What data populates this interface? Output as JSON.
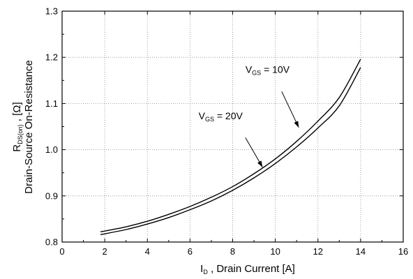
{
  "chart_data": {
    "type": "line",
    "title": "",
    "xlabel": {
      "main": "I",
      "sub": "D",
      "rest": " , Drain Current  [A]"
    },
    "ylabel": {
      "line1_main": "R",
      "line1_sub": "DS(on)",
      "line1_rest": " , [Ω]",
      "line2": "Drain-Source On-Resistance"
    },
    "xlim": [
      0,
      16
    ],
    "ylim": [
      0.8,
      1.3
    ],
    "xticks": [
      "0",
      "2",
      "4",
      "6",
      "8",
      "10",
      "12",
      "14",
      "16"
    ],
    "yticks": [
      "0.8",
      "0.9",
      "1.0",
      "1.1",
      "1.2",
      "1.3"
    ],
    "grid": true,
    "series": [
      {
        "name": "VGS = 10V",
        "x": [
          1.8,
          3,
          4,
          5,
          6,
          7,
          8,
          9,
          10,
          11,
          12,
          13,
          14
        ],
        "y": [
          0.822,
          0.833,
          0.845,
          0.86,
          0.877,
          0.897,
          0.92,
          0.948,
          0.98,
          1.018,
          1.062,
          1.113,
          1.196
        ]
      },
      {
        "name": "VGS = 20V",
        "x": [
          1.8,
          3,
          4,
          5,
          6,
          7,
          8,
          9,
          10,
          11,
          12,
          13,
          14
        ],
        "y": [
          0.816,
          0.827,
          0.839,
          0.853,
          0.87,
          0.889,
          0.912,
          0.939,
          0.97,
          1.006,
          1.047,
          1.095,
          1.178
        ]
      }
    ],
    "annotations": [
      {
        "main": "V",
        "sub": "GS",
        "rest": " = 10V",
        "text_at": [
          8.6,
          1.166
        ],
        "arrow_from": [
          10.3,
          1.126
        ],
        "arrow_to": [
          11.1,
          1.048
        ]
      },
      {
        "main": "V",
        "sub": "GS",
        "rest": " = 20V",
        "text_at": [
          6.4,
          1.066
        ],
        "arrow_from": [
          8.6,
          1.026
        ],
        "arrow_to": [
          9.4,
          0.962
        ]
      }
    ]
  }
}
